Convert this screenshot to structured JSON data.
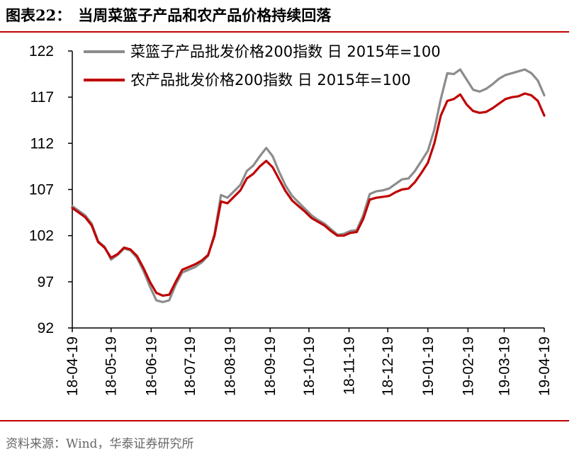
{
  "header": {
    "figure_number": "图表22：",
    "title": "当周菜篮子产品和农产品价格持续回落"
  },
  "footer": {
    "source": "资料来源：Wind，华泰证券研究所"
  },
  "colors": {
    "accent_rule": "#c00000",
    "series_vegetable": "#8c8c8c",
    "series_agri": "#c00000"
  },
  "chart_data": {
    "type": "line",
    "title": "当周菜篮子产品和农产品价格持续回落",
    "ylim": [
      92,
      122
    ],
    "yticks": [
      92,
      97,
      102,
      107,
      112,
      117,
      122
    ],
    "xlim": [
      "2018-04-19",
      "2019-04-19"
    ],
    "xticks": [
      "18-04-19",
      "18-05-19",
      "18-06-19",
      "18-07-19",
      "18-08-19",
      "18-09-19",
      "18-10-19",
      "18-11-19",
      "18-12-19",
      "19-01-19",
      "19-02-19",
      "19-03-19",
      "19-04-19"
    ],
    "legend_position": "top-left",
    "grid": false,
    "series": [
      {
        "name": "菜篮子产品批发价格200指数 日 2015年=100",
        "color": "#8c8c8c",
        "points": [
          [
            "2018-04-19",
            105.2
          ],
          [
            "2018-04-24",
            104.7
          ],
          [
            "2018-04-29",
            104.2
          ],
          [
            "2018-05-04",
            103.3
          ],
          [
            "2018-05-09",
            101.4
          ],
          [
            "2018-05-14",
            100.8
          ],
          [
            "2018-05-19",
            99.4
          ],
          [
            "2018-05-24",
            99.9
          ],
          [
            "2018-05-29",
            100.6
          ],
          [
            "2018-06-03",
            100.4
          ],
          [
            "2018-06-08",
            99.6
          ],
          [
            "2018-06-13",
            98.2
          ],
          [
            "2018-06-18",
            96.5
          ],
          [
            "2018-06-23",
            95.0
          ],
          [
            "2018-06-28",
            94.8
          ],
          [
            "2018-07-03",
            95.0
          ],
          [
            "2018-07-08",
            96.7
          ],
          [
            "2018-07-13",
            98.0
          ],
          [
            "2018-07-18",
            98.3
          ],
          [
            "2018-07-23",
            98.6
          ],
          [
            "2018-07-28",
            99.1
          ],
          [
            "2018-08-02",
            99.8
          ],
          [
            "2018-08-07",
            102.2
          ],
          [
            "2018-08-12",
            106.4
          ],
          [
            "2018-08-17",
            106.1
          ],
          [
            "2018-08-22",
            106.8
          ],
          [
            "2018-08-27",
            107.5
          ],
          [
            "2018-09-01",
            109.0
          ],
          [
            "2018-09-06",
            109.6
          ],
          [
            "2018-09-11",
            110.6
          ],
          [
            "2018-09-16",
            111.5
          ],
          [
            "2018-09-21",
            110.6
          ],
          [
            "2018-09-26",
            108.9
          ],
          [
            "2018-10-01",
            107.4
          ],
          [
            "2018-10-06",
            106.3
          ],
          [
            "2018-10-11",
            105.6
          ],
          [
            "2018-10-16",
            104.9
          ],
          [
            "2018-10-21",
            104.2
          ],
          [
            "2018-10-26",
            103.7
          ],
          [
            "2018-10-31",
            103.3
          ],
          [
            "2018-11-05",
            102.7
          ],
          [
            "2018-11-10",
            102.1
          ],
          [
            "2018-11-15",
            102.2
          ],
          [
            "2018-11-20",
            102.5
          ],
          [
            "2018-11-25",
            102.6
          ],
          [
            "2018-11-30",
            104.2
          ],
          [
            "2018-12-05",
            106.5
          ],
          [
            "2018-12-10",
            106.8
          ],
          [
            "2018-12-15",
            106.9
          ],
          [
            "2018-12-20",
            107.1
          ],
          [
            "2018-12-25",
            107.6
          ],
          [
            "2018-12-30",
            108.1
          ],
          [
            "2019-01-04",
            108.2
          ],
          [
            "2019-01-09",
            109.0
          ],
          [
            "2019-01-14",
            110.1
          ],
          [
            "2019-01-19",
            111.2
          ],
          [
            "2019-01-24",
            113.5
          ],
          [
            "2019-01-29",
            116.8
          ],
          [
            "2019-02-03",
            119.6
          ],
          [
            "2019-02-08",
            119.5
          ],
          [
            "2019-02-13",
            120.0
          ],
          [
            "2019-02-18",
            118.9
          ],
          [
            "2019-02-23",
            117.8
          ],
          [
            "2019-02-28",
            117.6
          ],
          [
            "2019-03-05",
            117.9
          ],
          [
            "2019-03-10",
            118.4
          ],
          [
            "2019-03-15",
            119.0
          ],
          [
            "2019-03-20",
            119.4
          ],
          [
            "2019-03-25",
            119.6
          ],
          [
            "2019-03-30",
            119.8
          ],
          [
            "2019-04-04",
            120.0
          ],
          [
            "2019-04-09",
            119.6
          ],
          [
            "2019-04-14",
            118.8
          ],
          [
            "2019-04-19",
            117.2
          ]
        ]
      },
      {
        "name": "农产品批发价格200指数 日 2015年=100",
        "color": "#c00000",
        "points": [
          [
            "2018-04-19",
            105.0
          ],
          [
            "2018-04-24",
            104.5
          ],
          [
            "2018-04-29",
            104.0
          ],
          [
            "2018-05-04",
            103.1
          ],
          [
            "2018-05-09",
            101.3
          ],
          [
            "2018-05-14",
            100.7
          ],
          [
            "2018-05-19",
            99.6
          ],
          [
            "2018-05-24",
            100.0
          ],
          [
            "2018-05-29",
            100.7
          ],
          [
            "2018-06-03",
            100.5
          ],
          [
            "2018-06-08",
            99.8
          ],
          [
            "2018-06-13",
            98.5
          ],
          [
            "2018-06-18",
            97.0
          ],
          [
            "2018-06-23",
            95.8
          ],
          [
            "2018-06-28",
            95.5
          ],
          [
            "2018-07-03",
            95.6
          ],
          [
            "2018-07-08",
            97.0
          ],
          [
            "2018-07-13",
            98.3
          ],
          [
            "2018-07-18",
            98.6
          ],
          [
            "2018-07-23",
            98.9
          ],
          [
            "2018-07-28",
            99.3
          ],
          [
            "2018-08-02",
            99.9
          ],
          [
            "2018-08-07",
            102.0
          ],
          [
            "2018-08-12",
            105.7
          ],
          [
            "2018-08-17",
            105.5
          ],
          [
            "2018-08-22",
            106.2
          ],
          [
            "2018-08-27",
            106.9
          ],
          [
            "2018-09-01",
            108.2
          ],
          [
            "2018-09-06",
            108.7
          ],
          [
            "2018-09-11",
            109.5
          ],
          [
            "2018-09-16",
            110.1
          ],
          [
            "2018-09-21",
            109.4
          ],
          [
            "2018-09-26",
            108.1
          ],
          [
            "2018-10-01",
            106.8
          ],
          [
            "2018-10-06",
            105.8
          ],
          [
            "2018-10-11",
            105.2
          ],
          [
            "2018-10-16",
            104.6
          ],
          [
            "2018-10-21",
            103.9
          ],
          [
            "2018-10-26",
            103.5
          ],
          [
            "2018-10-31",
            103.1
          ],
          [
            "2018-11-05",
            102.5
          ],
          [
            "2018-11-10",
            102.0
          ],
          [
            "2018-11-15",
            102.0
          ],
          [
            "2018-11-20",
            102.3
          ],
          [
            "2018-11-25",
            102.4
          ],
          [
            "2018-11-30",
            103.8
          ],
          [
            "2018-12-05",
            105.9
          ],
          [
            "2018-12-10",
            106.1
          ],
          [
            "2018-12-15",
            106.2
          ],
          [
            "2018-12-20",
            106.3
          ],
          [
            "2018-12-25",
            106.7
          ],
          [
            "2018-12-30",
            107.0
          ],
          [
            "2019-01-04",
            107.1
          ],
          [
            "2019-01-09",
            107.8
          ],
          [
            "2019-01-14",
            108.8
          ],
          [
            "2019-01-19",
            109.9
          ],
          [
            "2019-01-24",
            112.0
          ],
          [
            "2019-01-29",
            115.0
          ],
          [
            "2019-02-03",
            116.6
          ],
          [
            "2019-02-08",
            116.8
          ],
          [
            "2019-02-13",
            117.3
          ],
          [
            "2019-02-18",
            116.2
          ],
          [
            "2019-02-23",
            115.5
          ],
          [
            "2019-02-28",
            115.3
          ],
          [
            "2019-03-05",
            115.4
          ],
          [
            "2019-03-10",
            115.8
          ],
          [
            "2019-03-15",
            116.3
          ],
          [
            "2019-03-20",
            116.8
          ],
          [
            "2019-03-25",
            117.0
          ],
          [
            "2019-03-30",
            117.1
          ],
          [
            "2019-04-04",
            117.4
          ],
          [
            "2019-04-09",
            117.2
          ],
          [
            "2019-04-14",
            116.6
          ],
          [
            "2019-04-19",
            115.0
          ]
        ]
      }
    ]
  }
}
